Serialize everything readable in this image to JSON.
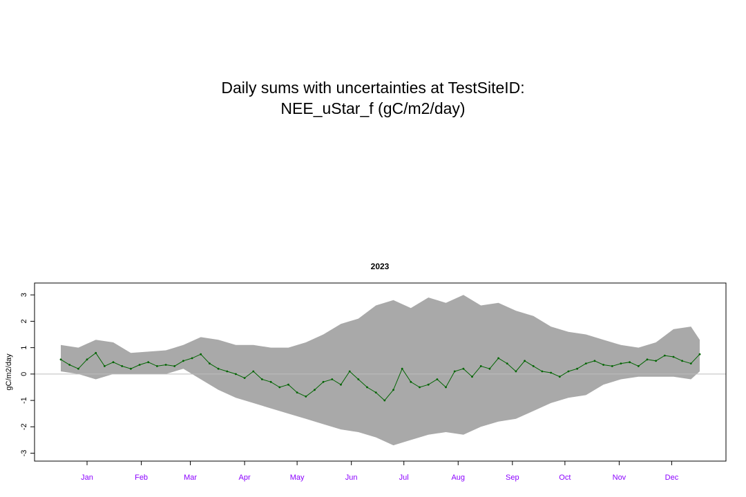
{
  "header": {
    "title_line1": "Daily sums with uncertainties at TestSiteID:",
    "title_line2": "NEE_uStar_f (gC/m2/day)"
  },
  "chart_data": {
    "type": "line",
    "title": "2023",
    "xlabel": "",
    "ylabel": "gC/m2/day",
    "xlim": [
      "2022-12-16",
      "2024-01-15"
    ],
    "ylim": [
      -3.3,
      3.45
    ],
    "y_ticks": [
      -3,
      -2,
      -1,
      0,
      1,
      2,
      3
    ],
    "x_tick_labels": [
      "Jan",
      "Feb",
      "Mar",
      "Apr",
      "May",
      "Jun",
      "Jul",
      "Aug",
      "Sep",
      "Oct",
      "Nov",
      "Dec"
    ],
    "x_tick_dates": [
      "2023-01-15",
      "2023-02-15",
      "2023-03-15",
      "2023-04-15",
      "2023-05-15",
      "2023-06-15",
      "2023-07-15",
      "2023-08-15",
      "2023-09-15",
      "2023-10-15",
      "2023-11-15",
      "2023-12-15"
    ],
    "reference_line": 0,
    "grid": false,
    "colors": {
      "line": "#006400",
      "band": "#a9a9a9",
      "zero_line": "#bebebe",
      "month_labels": "#8b00ff",
      "axis": "#000000"
    },
    "series": [
      {
        "role": "daily_sum",
        "x": [
          "2022-12-31",
          "2023-01-05",
          "2023-01-10",
          "2023-01-15",
          "2023-01-20",
          "2023-01-25",
          "2023-01-30",
          "2023-02-04",
          "2023-02-09",
          "2023-02-14",
          "2023-02-19",
          "2023-02-24",
          "2023-03-01",
          "2023-03-06",
          "2023-03-11",
          "2023-03-16",
          "2023-03-21",
          "2023-03-26",
          "2023-03-31",
          "2023-04-05",
          "2023-04-10",
          "2023-04-15",
          "2023-04-20",
          "2023-04-25",
          "2023-04-30",
          "2023-05-05",
          "2023-05-10",
          "2023-05-15",
          "2023-05-20",
          "2023-05-25",
          "2023-05-30",
          "2023-06-04",
          "2023-06-09",
          "2023-06-14",
          "2023-06-19",
          "2023-06-24",
          "2023-06-29",
          "2023-07-04",
          "2023-07-09",
          "2023-07-14",
          "2023-07-19",
          "2023-07-24",
          "2023-07-29",
          "2023-08-03",
          "2023-08-08",
          "2023-08-13",
          "2023-08-18",
          "2023-08-23",
          "2023-08-28",
          "2023-09-02",
          "2023-09-07",
          "2023-09-12",
          "2023-09-17",
          "2023-09-22",
          "2023-09-27",
          "2023-10-02",
          "2023-10-07",
          "2023-10-12",
          "2023-10-17",
          "2023-10-22",
          "2023-10-27",
          "2023-11-01",
          "2023-11-06",
          "2023-11-11",
          "2023-11-16",
          "2023-11-21",
          "2023-11-26",
          "2023-12-01",
          "2023-12-06",
          "2023-12-11",
          "2023-12-16",
          "2023-12-21",
          "2023-12-26",
          "2023-12-31"
        ],
        "values": [
          0.55,
          0.35,
          0.2,
          0.55,
          0.8,
          0.3,
          0.45,
          0.3,
          0.2,
          0.35,
          0.45,
          0.3,
          0.35,
          0.3,
          0.5,
          0.6,
          0.75,
          0.4,
          0.2,
          0.1,
          0.0,
          -0.15,
          0.1,
          -0.2,
          -0.3,
          -0.5,
          -0.4,
          -0.7,
          -0.85,
          -0.6,
          -0.3,
          -0.2,
          -0.4,
          0.1,
          -0.2,
          -0.5,
          -0.7,
          -1.0,
          -0.6,
          0.2,
          -0.3,
          -0.5,
          -0.4,
          -0.2,
          -0.5,
          0.1,
          0.2,
          -0.1,
          0.3,
          0.2,
          0.6,
          0.4,
          0.1,
          0.5,
          0.3,
          0.1,
          0.05,
          -0.1,
          0.1,
          0.2,
          0.4,
          0.5,
          0.35,
          0.3,
          0.4,
          0.45,
          0.3,
          0.55,
          0.5,
          0.7,
          0.65,
          0.5,
          0.4,
          0.75
        ]
      },
      {
        "role": "uncertainty_band",
        "x": [
          "2022-12-31",
          "2023-01-10",
          "2023-01-20",
          "2023-01-30",
          "2023-02-09",
          "2023-02-19",
          "2023-03-01",
          "2023-03-11",
          "2023-03-21",
          "2023-03-31",
          "2023-04-10",
          "2023-04-20",
          "2023-04-30",
          "2023-05-10",
          "2023-05-20",
          "2023-05-30",
          "2023-06-09",
          "2023-06-19",
          "2023-06-29",
          "2023-07-09",
          "2023-07-19",
          "2023-07-29",
          "2023-08-08",
          "2023-08-18",
          "2023-08-28",
          "2023-09-07",
          "2023-09-17",
          "2023-09-27",
          "2023-10-07",
          "2023-10-17",
          "2023-10-27",
          "2023-11-06",
          "2023-11-16",
          "2023-11-26",
          "2023-12-06",
          "2023-12-16",
          "2023-12-26",
          "2023-12-31"
        ],
        "upper": [
          1.1,
          1.0,
          1.3,
          1.2,
          0.8,
          0.85,
          0.9,
          1.1,
          1.4,
          1.3,
          1.1,
          1.1,
          1.0,
          1.0,
          1.2,
          1.5,
          1.9,
          2.1,
          2.6,
          2.8,
          2.5,
          2.9,
          2.7,
          3.0,
          2.6,
          2.7,
          2.4,
          2.2,
          1.8,
          1.6,
          1.5,
          1.3,
          1.1,
          1.0,
          1.2,
          1.7,
          1.8,
          1.3
        ],
        "lower": [
          0.1,
          0.0,
          -0.2,
          0.0,
          0.0,
          0.0,
          0.0,
          0.2,
          -0.2,
          -0.6,
          -0.9,
          -1.1,
          -1.3,
          -1.5,
          -1.7,
          -1.9,
          -2.1,
          -2.2,
          -2.4,
          -2.7,
          -2.5,
          -2.3,
          -2.2,
          -2.3,
          -2.0,
          -1.8,
          -1.7,
          -1.4,
          -1.1,
          -0.9,
          -0.8,
          -0.4,
          -0.2,
          -0.1,
          -0.1,
          -0.1,
          -0.2,
          0.1
        ]
      }
    ]
  }
}
